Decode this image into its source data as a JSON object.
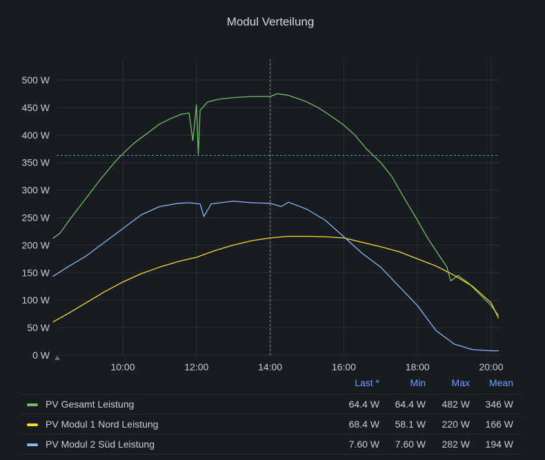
{
  "title": "Modul Verteilung",
  "chart_data": {
    "type": "line",
    "title": "Modul Verteilung",
    "xlabel": "",
    "ylabel": "",
    "x_range": [
      8.0,
      20.3
    ],
    "ylim": [
      0,
      500
    ],
    "y_ticks": [
      "0 W",
      "50 W",
      "100 W",
      "150 W",
      "200 W",
      "250 W",
      "300 W",
      "350 W",
      "400 W",
      "450 W",
      "500 W"
    ],
    "x_ticks": [
      "10:00",
      "12:00",
      "14:00",
      "16:00",
      "18:00",
      "20:00"
    ],
    "grid": true,
    "crosshair": {
      "x": "14:00",
      "y": 363
    },
    "series": [
      {
        "name": "PV Gesamt Leistung",
        "color": "#73bf69",
        "points": [
          [
            8.1,
            212
          ],
          [
            8.3,
            222
          ],
          [
            8.6,
            250
          ],
          [
            9.0,
            285
          ],
          [
            9.4,
            320
          ],
          [
            9.8,
            352
          ],
          [
            10.0,
            366
          ],
          [
            10.3,
            385
          ],
          [
            10.7,
            405
          ],
          [
            11.0,
            420
          ],
          [
            11.3,
            430
          ],
          [
            11.6,
            438
          ],
          [
            11.8,
            440
          ],
          [
            11.9,
            390
          ],
          [
            12.0,
            455
          ],
          [
            12.05,
            365
          ],
          [
            12.1,
            445
          ],
          [
            12.3,
            460
          ],
          [
            12.6,
            465
          ],
          [
            13.0,
            468
          ],
          [
            13.5,
            470
          ],
          [
            14.0,
            470
          ],
          [
            14.2,
            475
          ],
          [
            14.5,
            472
          ],
          [
            14.8,
            465
          ],
          [
            15.0,
            460
          ],
          [
            15.3,
            450
          ],
          [
            15.6,
            437
          ],
          [
            16.0,
            418
          ],
          [
            16.3,
            400
          ],
          [
            16.6,
            376
          ],
          [
            17.0,
            350
          ],
          [
            17.3,
            325
          ],
          [
            17.6,
            290
          ],
          [
            18.0,
            245
          ],
          [
            18.3,
            210
          ],
          [
            18.6,
            180
          ],
          [
            18.8,
            160
          ],
          [
            18.9,
            135
          ],
          [
            19.1,
            145
          ],
          [
            19.4,
            130
          ],
          [
            19.7,
            110
          ],
          [
            20.0,
            90
          ],
          [
            20.2,
            72
          ]
        ]
      },
      {
        "name": "PV Modul 1 Nord Leistung",
        "color": "#fade2a",
        "points": [
          [
            8.1,
            60
          ],
          [
            8.5,
            75
          ],
          [
            9.0,
            95
          ],
          [
            9.5,
            115
          ],
          [
            10.0,
            133
          ],
          [
            10.5,
            148
          ],
          [
            11.0,
            160
          ],
          [
            11.5,
            170
          ],
          [
            12.0,
            178
          ],
          [
            12.5,
            190
          ],
          [
            13.0,
            200
          ],
          [
            13.5,
            208
          ],
          [
            14.0,
            213
          ],
          [
            14.5,
            216
          ],
          [
            15.0,
            216
          ],
          [
            15.5,
            215
          ],
          [
            16.0,
            213
          ],
          [
            16.5,
            205
          ],
          [
            17.0,
            197
          ],
          [
            17.5,
            188
          ],
          [
            18.0,
            175
          ],
          [
            18.5,
            162
          ],
          [
            19.0,
            145
          ],
          [
            19.5,
            125
          ],
          [
            20.0,
            95
          ],
          [
            20.2,
            67
          ]
        ]
      },
      {
        "name": "PV Modul 2 Süd Leistung",
        "color": "#8ab8ff",
        "points": [
          [
            8.1,
            143
          ],
          [
            8.5,
            160
          ],
          [
            9.0,
            180
          ],
          [
            9.5,
            205
          ],
          [
            10.0,
            230
          ],
          [
            10.5,
            255
          ],
          [
            11.0,
            270
          ],
          [
            11.5,
            276
          ],
          [
            11.8,
            277
          ],
          [
            12.1,
            275
          ],
          [
            12.2,
            252
          ],
          [
            12.4,
            275
          ],
          [
            13.0,
            280
          ],
          [
            13.5,
            277
          ],
          [
            14.0,
            276
          ],
          [
            14.3,
            270
          ],
          [
            14.5,
            278
          ],
          [
            15.0,
            265
          ],
          [
            15.5,
            245
          ],
          [
            16.0,
            215
          ],
          [
            16.5,
            185
          ],
          [
            17.0,
            160
          ],
          [
            17.5,
            125
          ],
          [
            18.0,
            90
          ],
          [
            18.5,
            45
          ],
          [
            19.0,
            20
          ],
          [
            19.5,
            10
          ],
          [
            20.0,
            8
          ],
          [
            20.2,
            8
          ]
        ]
      }
    ]
  },
  "legend": {
    "headers": {
      "last": "Last *",
      "min": "Min",
      "max": "Max",
      "mean": "Mean"
    },
    "rows": [
      {
        "name": "PV Gesamt Leistung",
        "color": "#73bf69",
        "last": "64.4 W",
        "min": "64.4 W",
        "max": "482 W",
        "mean": "346 W"
      },
      {
        "name": "PV Modul 1 Nord Leistung",
        "color": "#fade2a",
        "last": "68.4 W",
        "min": "58.1 W",
        "max": "220 W",
        "mean": "166 W"
      },
      {
        "name": "PV Modul 2 Süd Leistung",
        "color": "#8ab8ff",
        "last": "7.60 W",
        "min": "7.60 W",
        "max": "282 W",
        "mean": "194 W"
      }
    ]
  }
}
